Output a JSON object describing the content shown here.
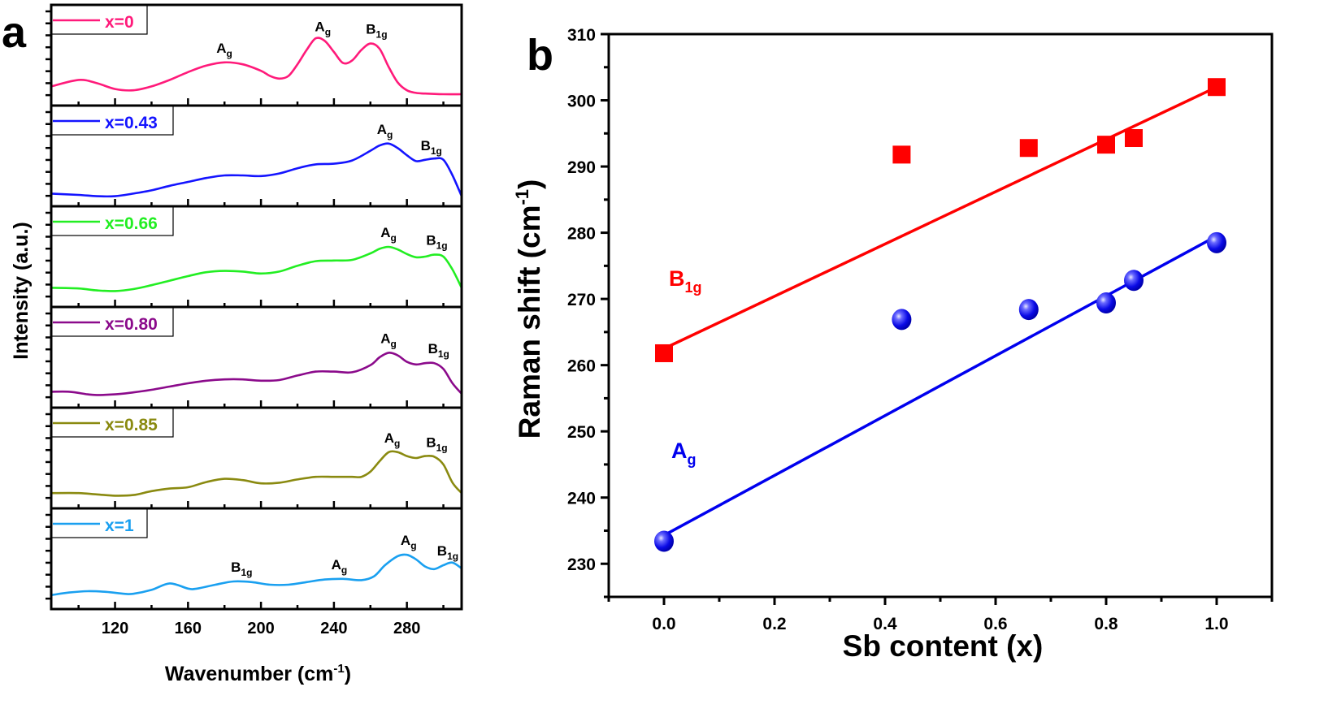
{
  "figure": {
    "panel_a_label": "a",
    "panel_b_label": "b"
  },
  "chart_data": [
    {
      "type": "line",
      "panel": "a",
      "title": "",
      "xlabel": "Wavenumber (cm-1)",
      "xlabel_main": "Wavenumber (cm",
      "xlabel_sup": "-1",
      "xlabel_close": ")",
      "ylabel": "Intensity (a.u.)",
      "xlim": [
        85,
        310
      ],
      "xticks": [
        120,
        160,
        200,
        240,
        280
      ],
      "xtick_labels": [
        "120",
        "160",
        "200",
        "240",
        "280"
      ],
      "ylim": [
        0,
        1
      ],
      "stacked_panels": true,
      "legend_position": "top-left of each panel",
      "series": [
        {
          "name": "x=0",
          "color": "#ff1a7a",
          "x": [
            85,
            100,
            110,
            120,
            130,
            140,
            150,
            160,
            170,
            180,
            190,
            200,
            205,
            210,
            215,
            220,
            225,
            230,
            235,
            240,
            245,
            250,
            255,
            260,
            265,
            270,
            275,
            280,
            285,
            290,
            300,
            310
          ],
          "y": [
            0.12,
            0.22,
            0.17,
            0.08,
            0.06,
            0.12,
            0.22,
            0.34,
            0.44,
            0.49,
            0.46,
            0.36,
            0.28,
            0.24,
            0.28,
            0.46,
            0.68,
            0.86,
            0.82,
            0.65,
            0.48,
            0.52,
            0.68,
            0.78,
            0.7,
            0.42,
            0.18,
            0.06,
            0.02,
            0.01,
            0.0,
            0.0
          ],
          "peak_labels": [
            {
              "x": 180,
              "mode": "A",
              "sub": "g"
            },
            {
              "x": 234,
              "mode": "A",
              "sub": "g"
            },
            {
              "x": 262,
              "mode": "B",
              "sub": "1g"
            }
          ]
        },
        {
          "name": "x=0.43",
          "color": "#1414ff",
          "x": [
            85,
            100,
            110,
            120,
            130,
            140,
            150,
            160,
            170,
            180,
            190,
            200,
            210,
            220,
            230,
            240,
            250,
            260,
            265,
            270,
            275,
            280,
            285,
            290,
            295,
            300,
            305,
            310
          ],
          "y": [
            0.02,
            0.0,
            -0.02,
            -0.02,
            0.02,
            0.07,
            0.14,
            0.2,
            0.26,
            0.3,
            0.3,
            0.29,
            0.33,
            0.41,
            0.47,
            0.48,
            0.53,
            0.68,
            0.76,
            0.79,
            0.72,
            0.61,
            0.52,
            0.54,
            0.56,
            0.54,
            0.3,
            -0.02
          ],
          "peak_labels": [
            {
              "x": 268,
              "mode": "A",
              "sub": "g"
            },
            {
              "x": 292,
              "mode": "B",
              "sub": "1g"
            }
          ]
        },
        {
          "name": "x=0.66",
          "color": "#22ee22",
          "x": [
            85,
            100,
            110,
            120,
            130,
            140,
            150,
            160,
            170,
            180,
            190,
            200,
            210,
            220,
            230,
            240,
            250,
            260,
            265,
            270,
            275,
            280,
            285,
            290,
            295,
            300,
            305,
            310
          ],
          "y": [
            0.12,
            0.11,
            0.08,
            0.07,
            0.1,
            0.16,
            0.23,
            0.3,
            0.36,
            0.38,
            0.37,
            0.34,
            0.37,
            0.46,
            0.53,
            0.54,
            0.55,
            0.65,
            0.72,
            0.75,
            0.71,
            0.64,
            0.59,
            0.6,
            0.63,
            0.6,
            0.4,
            0.12
          ],
          "peak_labels": [
            {
              "x": 270,
              "mode": "A",
              "sub": "g"
            },
            {
              "x": 295,
              "mode": "B",
              "sub": "1g"
            }
          ]
        },
        {
          "name": "x=0.80",
          "color": "#8b0a8b",
          "x": [
            85,
            95,
            105,
            110,
            120,
            130,
            140,
            150,
            160,
            170,
            180,
            190,
            200,
            210,
            220,
            230,
            240,
            250,
            260,
            265,
            270,
            275,
            280,
            285,
            290,
            295,
            300,
            305,
            310
          ],
          "y": [
            0.07,
            0.07,
            0.03,
            0.02,
            0.03,
            0.06,
            0.1,
            0.15,
            0.2,
            0.24,
            0.26,
            0.26,
            0.24,
            0.25,
            0.32,
            0.38,
            0.38,
            0.37,
            0.48,
            0.6,
            0.67,
            0.63,
            0.53,
            0.49,
            0.51,
            0.51,
            0.42,
            0.2,
            0.04
          ],
          "peak_labels": [
            {
              "x": 270,
              "mode": "A",
              "sub": "g"
            },
            {
              "x": 296,
              "mode": "B",
              "sub": "1g"
            }
          ]
        },
        {
          "name": "x=0.85",
          "color": "#8a8a10",
          "x": [
            85,
            100,
            110,
            120,
            130,
            140,
            150,
            160,
            170,
            180,
            190,
            200,
            210,
            220,
            230,
            240,
            250,
            255,
            260,
            265,
            270,
            275,
            280,
            285,
            290,
            295,
            300,
            305,
            310
          ],
          "y": [
            0.06,
            0.06,
            0.04,
            0.02,
            0.03,
            0.09,
            0.13,
            0.15,
            0.23,
            0.28,
            0.26,
            0.21,
            0.22,
            0.27,
            0.31,
            0.31,
            0.31,
            0.31,
            0.39,
            0.55,
            0.69,
            0.69,
            0.63,
            0.6,
            0.63,
            0.62,
            0.5,
            0.22,
            0.06
          ],
          "peak_labels": [
            {
              "x": 272,
              "mode": "A",
              "sub": "g"
            },
            {
              "x": 295,
              "mode": "B",
              "sub": "1g"
            }
          ]
        },
        {
          "name": "x=1",
          "color": "#1aa0f0",
          "x": [
            85,
            95,
            105,
            115,
            125,
            130,
            140,
            150,
            160,
            165,
            175,
            185,
            195,
            205,
            215,
            225,
            235,
            245,
            255,
            262,
            268,
            275,
            280,
            285,
            290,
            295,
            300,
            305,
            310
          ],
          "y": [
            0.04,
            0.08,
            0.1,
            0.09,
            0.06,
            0.06,
            0.12,
            0.22,
            0.14,
            0.14,
            0.2,
            0.25,
            0.24,
            0.2,
            0.2,
            0.24,
            0.28,
            0.29,
            0.27,
            0.33,
            0.5,
            0.64,
            0.66,
            0.59,
            0.48,
            0.44,
            0.5,
            0.54,
            0.45
          ],
          "peak_labels": [
            {
              "x": 188,
              "mode": "B",
              "sub": "1g"
            },
            {
              "x": 243,
              "mode": "A",
              "sub": "g"
            },
            {
              "x": 281,
              "mode": "A",
              "sub": "g"
            },
            {
              "x": 301,
              "mode": "B",
              "sub": "1g"
            }
          ]
        }
      ]
    },
    {
      "type": "scatter",
      "panel": "b",
      "title": "",
      "xlabel": "Sb content (x)",
      "ylabel": "Raman shift (cm-1)",
      "ylabel_main": "Raman shift (cm",
      "ylabel_sup": "-1",
      "ylabel_close": ")",
      "xlim": [
        -0.1,
        1.1
      ],
      "ylim": [
        225,
        310
      ],
      "xticks": [
        0.0,
        0.2,
        0.4,
        0.6,
        0.8,
        1.0
      ],
      "xtick_labels": [
        "0.0",
        "0.2",
        "0.4",
        "0.6",
        "0.8",
        "1.0"
      ],
      "yticks": [
        230,
        240,
        250,
        260,
        270,
        280,
        290,
        300,
        310
      ],
      "ytick_labels": [
        "230",
        "240",
        "250",
        "260",
        "270",
        "280",
        "290",
        "300",
        "310"
      ],
      "grid": false,
      "series": [
        {
          "name": "B1g",
          "label_main": "B",
          "label_sub": "1g",
          "color": "#ff0000",
          "marker": "square",
          "x": [
            0.0,
            0.43,
            0.66,
            0.8,
            0.85,
            1.0
          ],
          "y": [
            261.8,
            291.8,
            292.8,
            293.3,
            294.3,
            302.0
          ],
          "fit": {
            "x": [
              0.0,
              1.0
            ],
            "y": [
              262.5,
              302.0
            ]
          }
        },
        {
          "name": "Ag",
          "label_main": "A",
          "label_sub": "g",
          "color": "#0000ee",
          "marker": "sphere",
          "x": [
            0.0,
            0.43,
            0.66,
            0.8,
            0.85,
            1.0
          ],
          "y": [
            233.4,
            266.9,
            268.4,
            269.4,
            272.8,
            278.5
          ],
          "fit": {
            "x": [
              0.0,
              1.0
            ],
            "y": [
              234.3,
              279.5
            ]
          }
        }
      ]
    }
  ]
}
